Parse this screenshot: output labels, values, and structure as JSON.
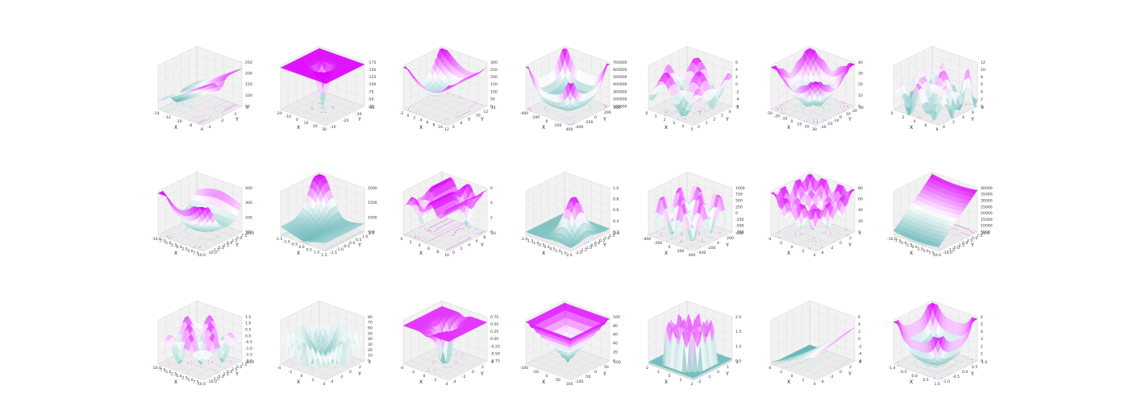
{
  "theme": {
    "color_high": "#dd00ff",
    "color_low": "#5fb3b3",
    "color_mid": "#ffffff",
    "pane_line": "#cccccc"
  },
  "chart_data": [
    {
      "type": "surface3d",
      "row": 0,
      "col": 0,
      "shape": "sheet-ridge",
      "xlabel": "X",
      "ylabel": "Y",
      "xticks": [
        "-14",
        "-12",
        "-10",
        "-8",
        "-6"
      ],
      "yticks": [
        "-3",
        "-2",
        "-1",
        "0"
      ],
      "zticks": [
        "50",
        "100",
        "150",
        "200",
        "250"
      ],
      "zlim": [
        0,
        250
      ],
      "contour_projection": true
    },
    {
      "type": "surface3d",
      "row": 0,
      "col": 1,
      "shape": "flat-with-deep-well",
      "xlabel": "X",
      "ylabel": "Y",
      "xticks": [
        "-20",
        "-10",
        "0",
        "10",
        "20",
        "30"
      ],
      "yticks": [
        "-10",
        "-20",
        "-30",
        "-40"
      ],
      "zticks": [
        "-25",
        "-50",
        "-75",
        "-100",
        "-125",
        "-150",
        "-175"
      ],
      "zlim": [
        -175,
        0
      ],
      "contour_projection": true
    },
    {
      "type": "surface3d",
      "row": 0,
      "col": 2,
      "shape": "saddle-bowl",
      "xlabel": "X",
      "ylabel": "Y",
      "xticks": [
        "-2",
        "0",
        "2",
        "4",
        "6",
        "8",
        "10",
        "12"
      ],
      "yticks": [
        "4",
        "6",
        "8",
        "10",
        "12",
        "14"
      ],
      "zticks": [
        "0",
        "50",
        "100",
        "150",
        "200",
        "250",
        "300"
      ],
      "zlim": [
        0,
        300
      ],
      "contour_projection": true
    },
    {
      "type": "surface3d",
      "row": 0,
      "col": 3,
      "shape": "bowl-corners-up",
      "xlabel": "X",
      "ylabel": "Y",
      "xticks": [
        "-400",
        "-200",
        "0",
        "200",
        "400"
      ],
      "yticks": [
        "-400",
        "-200",
        "0",
        "200",
        "400"
      ],
      "zticks": [
        "100000",
        "200000",
        "300000",
        "400000",
        "500000",
        "600000",
        "700000"
      ],
      "zlim": [
        0,
        700000
      ],
      "contour_projection": true
    },
    {
      "type": "surface3d",
      "row": 0,
      "col": 4,
      "shape": "multi-peak",
      "xlabel": "X",
      "ylabel": "Y",
      "xticks": [
        "0",
        "1",
        "2",
        "3",
        "4",
        "5"
      ],
      "yticks": [
        "0",
        "1",
        "2",
        "3",
        "4",
        "5"
      ],
      "zticks": [
        "-6",
        "-4",
        "-2",
        "0",
        "2",
        "4",
        "6"
      ],
      "zlim": [
        -6,
        6
      ],
      "contour_projection": true
    },
    {
      "type": "surface3d",
      "row": 0,
      "col": 5,
      "shape": "bowl",
      "xlabel": "X",
      "ylabel": "Y",
      "xticks": [
        "-30",
        "-20",
        "-10",
        "0",
        "10",
        "20",
        "30"
      ],
      "yticks": [
        "-30",
        "-20",
        "-10",
        "0",
        "10",
        "20",
        "30"
      ],
      "zticks": [
        "0",
        "10",
        "20",
        "30",
        "40"
      ],
      "zlim": [
        0,
        40
      ],
      "contour_projection": true
    },
    {
      "type": "surface3d",
      "row": 0,
      "col": 6,
      "shape": "rugged-peaks",
      "xlabel": "X",
      "ylabel": "Y",
      "xticks": [
        "0",
        "2",
        "4",
        "6",
        "8"
      ],
      "yticks": [
        "0",
        "2",
        "4",
        "6",
        "8"
      ],
      "zticks": [
        "0",
        "2",
        "4",
        "6",
        "8",
        "10",
        "12"
      ],
      "zlim": [
        0,
        12
      ],
      "contour_projection": true
    },
    {
      "type": "surface3d",
      "row": 1,
      "col": 0,
      "shape": "valley-curved",
      "xlabel": "X",
      "ylabel": "Y",
      "xticks": [
        "-10.0",
        "-7.5",
        "-5.0",
        "-2.5",
        "0.0",
        "2.5",
        "5.0",
        "7.5",
        "10.0"
      ],
      "yticks": [
        "-10.0",
        "-7.5",
        "-5.0",
        "-2.5",
        "0.0",
        "2.5",
        "5.0",
        "7.5",
        "10.0"
      ],
      "zticks": [
        "100",
        "200",
        "300",
        "400"
      ],
      "zlim": [
        0,
        400
      ],
      "contour_projection": true
    },
    {
      "type": "surface3d",
      "row": 1,
      "col": 1,
      "shape": "corner-spike",
      "xlabel": "X",
      "ylabel": "Y",
      "xticks": [
        "-1.5",
        "-1.0",
        "-0.5",
        "0.0",
        "0.5",
        "1.0",
        "1.5"
      ],
      "yticks": [
        "-1.5",
        "-1.0",
        "-0.5",
        "0.0",
        "0.5",
        "1.0",
        "1.5"
      ],
      "zticks": [
        "500",
        "1000",
        "1500",
        "2000"
      ],
      "zlim": [
        0,
        2000
      ],
      "contour_projection": true
    },
    {
      "type": "surface3d",
      "row": 1,
      "col": 2,
      "shape": "sparse-wells",
      "xlabel": "X",
      "ylabel": "Y",
      "xticks": [
        "0",
        "2",
        "4",
        "6",
        "8",
        "10"
      ],
      "yticks": [
        "0",
        "2",
        "4",
        "6",
        "8",
        "10"
      ],
      "zticks": [
        "0",
        "2",
        "4",
        "6"
      ],
      "zlim": [
        0,
        6
      ],
      "contour_projection": true
    },
    {
      "type": "surface3d",
      "row": 1,
      "col": 3,
      "shape": "single-peak",
      "xlabel": "X",
      "ylabel": "Y",
      "xticks": [
        "-2.0",
        "-1.5",
        "-1.0",
        "-0.5",
        "0.0",
        "0.5",
        "1.0",
        "1.5",
        "2.0"
      ],
      "yticks": [
        "-2.0",
        "-1.5",
        "-1.0",
        "-0.5",
        "0.0",
        "0.5",
        "1.0",
        "1.5",
        "2.0"
      ],
      "zticks": [
        "0.2",
        "0.4",
        "0.6",
        "0.8",
        "1.0"
      ],
      "zlim": [
        0,
        1
      ],
      "contour_projection": true
    },
    {
      "type": "surface3d",
      "row": 1,
      "col": 4,
      "shape": "egg-crate",
      "xlabel": "X",
      "ylabel": "Y",
      "xticks": [
        "-400",
        "-200",
        "0",
        "200",
        "400"
      ],
      "yticks": [
        "-400",
        "-200",
        "0",
        "200",
        "400"
      ],
      "zticks": [
        "-750",
        "-500",
        "-250",
        "0",
        "250",
        "500",
        "750",
        "1000"
      ],
      "zlim": [
        -750,
        1000
      ],
      "contour_projection": true
    },
    {
      "type": "surface3d",
      "row": 1,
      "col": 5,
      "shape": "rastrigin-like",
      "xlabel": "X",
      "ylabel": "Y",
      "xticks": [
        "-4",
        "-2",
        "0",
        "2",
        "4"
      ],
      "yticks": [
        "-4",
        "-2",
        "0",
        "2",
        "4"
      ],
      "zticks": [
        "0",
        "20",
        "40",
        "60",
        "80"
      ],
      "zlim": [
        0,
        80
      ],
      "contour_projection": true
    },
    {
      "type": "surface3d",
      "row": 1,
      "col": 6,
      "shape": "tilted-plane",
      "xlabel": "X",
      "ylabel": "Y",
      "xticks": [
        "-10.0",
        "-7.5",
        "-5.0",
        "-2.5",
        "0.0",
        "2.5",
        "5.0",
        "7.5",
        "10.0"
      ],
      "yticks": [
        "-10.0",
        "-7.5",
        "-5.0",
        "-2.5",
        "0.0",
        "2.5",
        "5.0",
        "7.5",
        "10.0"
      ],
      "zticks": [
        "5000",
        "10000",
        "15000",
        "20000",
        "25000",
        "30000",
        "35000",
        "40000"
      ],
      "zlim": [
        0,
        40000
      ],
      "contour_projection": true
    },
    {
      "type": "surface3d",
      "row": 2,
      "col": 0,
      "shape": "oscillating",
      "xlabel": "X",
      "ylabel": "Y",
      "xticks": [
        "-10.0",
        "-7.5",
        "-5.0",
        "-2.5",
        "0.0",
        "2.5",
        "5.0",
        "7.5",
        "10.0"
      ],
      "yticks": [
        "-10.0",
        "-7.5",
        "-5.0",
        "-2.5",
        "0.0",
        "2.5",
        "5.0",
        "7.5",
        "10.0"
      ],
      "zticks": [
        "-2.0",
        "-1.5",
        "-1.0",
        "-0.5",
        "0.0",
        "0.5",
        "1.0",
        "1.5"
      ],
      "zlim": [
        -2,
        1.5
      ],
      "contour_projection": true
    },
    {
      "type": "surface3d",
      "row": 2,
      "col": 1,
      "shape": "spiky-walls",
      "xlabel": "X",
      "ylabel": "Y",
      "xticks": [
        "-4",
        "-2",
        "0",
        "2",
        "4"
      ],
      "yticks": [
        "-4",
        "-2",
        "0",
        "2",
        "4"
      ],
      "zticks": [
        "0",
        "10",
        "20",
        "30",
        "40",
        "50",
        "60",
        "70",
        "80"
      ],
      "zlim": [
        0,
        80
      ],
      "contour_projection": true
    },
    {
      "type": "surface3d",
      "row": 2,
      "col": 2,
      "shape": "flat-with-wells",
      "xlabel": "X",
      "ylabel": "Y",
      "xticks": [
        "-4",
        "-2",
        "0",
        "2",
        "4"
      ],
      "yticks": [
        "-4",
        "-2",
        "0",
        "2",
        "4"
      ],
      "zticks": [
        "-0.75",
        "-0.50",
        "-0.25",
        "0.00",
        "0.25",
        "0.50",
        "0.75"
      ],
      "zlim": [
        -0.75,
        0.75
      ],
      "contour_projection": true
    },
    {
      "type": "surface3d",
      "row": 2,
      "col": 3,
      "shape": "inverted-pyramid",
      "xlabel": "X",
      "ylabel": "Y",
      "xticks": [
        "-100",
        "-50",
        "0",
        "50",
        "100"
      ],
      "yticks": [
        "-100",
        "-50",
        "0",
        "50",
        "100"
      ],
      "zticks": [
        "0",
        "20",
        "40",
        "60",
        "80",
        "100"
      ],
      "zlim": [
        0,
        100
      ],
      "contour_projection": true
    },
    {
      "type": "surface3d",
      "row": 2,
      "col": 4,
      "shape": "ring-cylinder",
      "xlabel": "X",
      "ylabel": "Y",
      "xticks": [
        "-2",
        "-1",
        "0",
        "1",
        "2"
      ],
      "yticks": [
        "-2",
        "-1",
        "0",
        "1",
        "2"
      ],
      "zticks": [
        "0.5",
        "1.0",
        "1.5",
        "2.0"
      ],
      "zlim": [
        0,
        2
      ],
      "contour_projection": true
    },
    {
      "type": "surface3d",
      "row": 2,
      "col": 5,
      "shape": "ramp",
      "xlabel": "X",
      "ylabel": "Y",
      "xticks": [
        "-4",
        "-2",
        "0",
        "2",
        "4"
      ],
      "yticks": [
        "-4",
        "-2",
        "0",
        "2",
        "4"
      ],
      "zticks": [
        "-6",
        "-4",
        "-2",
        "0",
        "2",
        "4",
        "6"
      ],
      "zlim": [
        -6,
        6
      ],
      "contour_projection": true
    },
    {
      "type": "surface3d",
      "row": 2,
      "col": 6,
      "shape": "shallow-bowl",
      "xlabel": "X",
      "ylabel": "Y",
      "xticks": [
        "-1.0",
        "-0.5",
        "0.0",
        "0.5",
        "1.0"
      ],
      "yticks": [
        "-1.0",
        "-0.5",
        "0.0",
        "0.5",
        "1.0"
      ],
      "zticks": [
        "0",
        "1",
        "2",
        "3",
        "4",
        "5",
        "6"
      ],
      "zlim": [
        0,
        6
      ],
      "contour_projection": true
    }
  ]
}
